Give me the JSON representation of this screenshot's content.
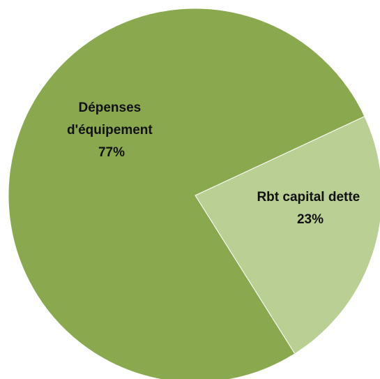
{
  "chart_data": {
    "type": "pie",
    "title": "",
    "slices": [
      {
        "label": "Rbt capital dette",
        "value": 23,
        "percent_label": "23%",
        "color": "#b9cf94"
      },
      {
        "label": "Dépenses d'équipement",
        "value": 77,
        "percent_label": "77%",
        "color": "#8aa94f"
      }
    ]
  },
  "labels": {
    "depenses_line1": "Dépenses",
    "depenses_line2": "d'équipement",
    "depenses_pct": "77%",
    "rbt_line1": "Rbt capital dette",
    "rbt_pct": "23%"
  }
}
